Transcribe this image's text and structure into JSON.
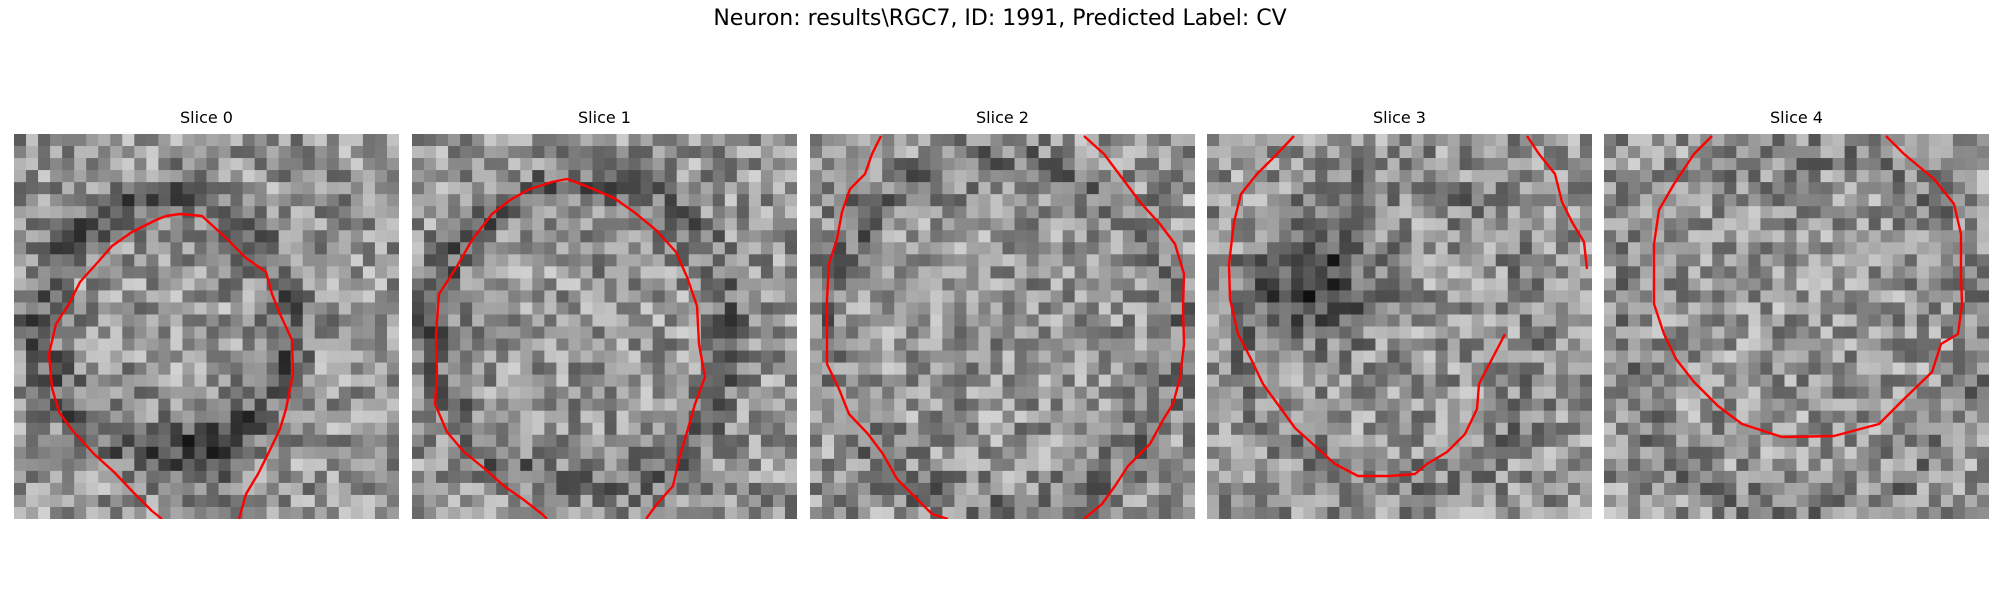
{
  "title": "Neuron: results\\RGC7, ID: 1991, Predicted Label: CV",
  "contour_color": "#ff0000",
  "slices": [
    {
      "label": "Slice 0"
    },
    {
      "label": "Slice 1"
    },
    {
      "label": "Slice 2"
    },
    {
      "label": "Slice 3"
    },
    {
      "label": "Slice 4"
    }
  ]
}
